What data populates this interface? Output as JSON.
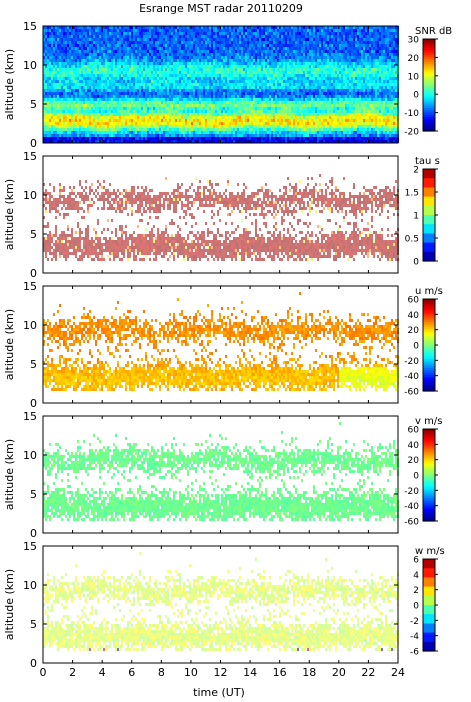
{
  "chart_data": {
    "type": "heatmap",
    "title": "Esrange MST radar 20110209",
    "xlabel": "time (UT)",
    "xlim": [
      0,
      24
    ],
    "x_ticks": [
      "0",
      "2",
      "4",
      "6",
      "8",
      "10",
      "12",
      "14",
      "16",
      "18",
      "20",
      "22",
      "24"
    ],
    "panels": [
      {
        "id": "snr",
        "ylabel": "altitude (km)",
        "ylim": [
          0,
          15
        ],
        "y_ticks": [
          "0",
          "5",
          "10",
          "15"
        ],
        "colorbar_label": "SNR dB",
        "colorbar_range": [
          -20,
          30
        ],
        "colorbar_ticks": [
          "30",
          "20",
          "10",
          "0",
          "-10",
          "-20"
        ],
        "colormap": "jet-continuous",
        "coverage": "full",
        "dominant": "blue background, cyan/green bands near 5 km and 9 km, yellow-red band at 1-4 km"
      },
      {
        "id": "tau",
        "ylabel": "altitude (km)",
        "ylim": [
          0,
          15
        ],
        "y_ticks": [
          "0",
          "5",
          "10",
          "15"
        ],
        "colorbar_label": "tau s",
        "colorbar_range": [
          0,
          2
        ],
        "colorbar_ticks": [
          "2",
          "1.5",
          "1",
          "0.5",
          "0"
        ],
        "colormap": "jet-discrete",
        "coverage": "sparse",
        "dominant": "dark red echoes 1.5-5.5 km and 7.5-11.5 km"
      },
      {
        "id": "u",
        "ylabel": "altitude (km)",
        "ylim": [
          0,
          15
        ],
        "y_ticks": [
          "0",
          "5",
          "10",
          "15"
        ],
        "colorbar_label": "u m/s",
        "colorbar_range": [
          -60,
          60
        ],
        "colorbar_ticks": [
          "60",
          "40",
          "20",
          "0",
          "-20",
          "-40",
          "-60"
        ],
        "colormap": "jet-continuous",
        "coverage": "sparse",
        "dominant": "yellow to yellow-green (about 20-30 m/s)"
      },
      {
        "id": "v",
        "ylabel": "altitude (km)",
        "ylim": [
          0,
          15
        ],
        "y_ticks": [
          "0",
          "5",
          "10",
          "15"
        ],
        "colorbar_label": "v m/s",
        "colorbar_range": [
          -60,
          60
        ],
        "colorbar_ticks": [
          "60",
          "40",
          "20",
          "0",
          "-20",
          "-40",
          "-60"
        ],
        "colormap": "jet-continuous",
        "coverage": "sparse",
        "dominant": "light cyan (about -5 to 0 m/s)"
      },
      {
        "id": "w",
        "ylabel": "altitude (km)",
        "ylim": [
          0,
          15
        ],
        "y_ticks": [
          "0",
          "5",
          "10",
          "15"
        ],
        "colorbar_label": "w m/s",
        "colorbar_range": [
          -6,
          6
        ],
        "colorbar_ticks": [
          "6",
          "4",
          "2",
          "0",
          "-2",
          "-4",
          "-6"
        ],
        "colormap": "jet-discrete",
        "coverage": "sparse",
        "dominant": "light green to yellow-green (about 0.5-1.5 m/s), dark blue and red speckles near 1.5 km"
      }
    ]
  }
}
